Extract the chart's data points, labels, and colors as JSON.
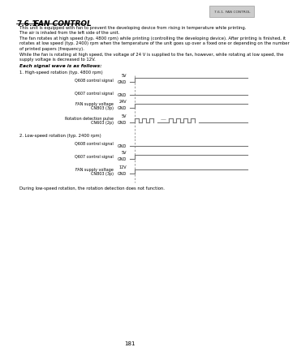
{
  "page_label": "7.6.1. FAN CONTROL",
  "heading_num": "7.6.1.",
  "heading_title": "FAN CONTROL",
  "body_lines": [
    "This unit is equipped with fan to prevent the developing device from rising in temperature while printing.",
    "The air is inhaled from the left side of the unit.",
    "The fan rotates at high speed (typ. 4800 rpm) while printing (controlling the developing device). After printing is finished, it",
    "rotates at low speed (typ. 2400) rpm when the temperature of the unit goes up over a fixed one or depending on the number",
    "of printed papers (frequency).",
    "While the fan is rotating at high speed, the voltage of 24 V is supplied to the fan, however, while rotating at low speed, the",
    "supply voltage is decreased to 12V."
  ],
  "signal_header": "Each signal wave is as follows:",
  "sec1_label": "1. High-speed rotation (typ. 4800 rpm)",
  "sec2_label": "2. Low-speed rotation (typ. 2400 rpm)",
  "footer_note": "During low-speed rotation, the rotation detection does not function.",
  "page_number": "181",
  "bg_color": "#ffffff",
  "text_color": "#000000",
  "line_color": "#777777",
  "dash_color": "#999999",
  "top_badge_text": "7.6.1. FAN CONTROL",
  "top_badge_bg": "#cccccc"
}
